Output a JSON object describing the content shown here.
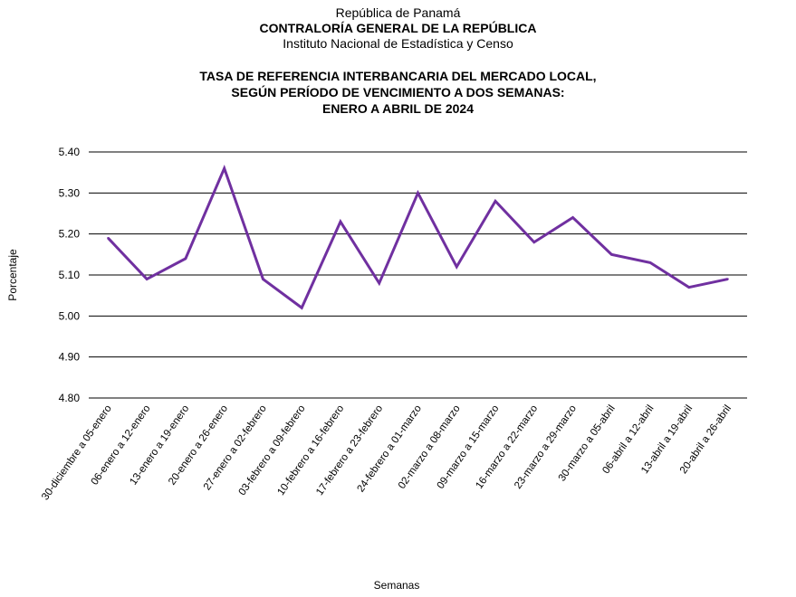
{
  "header": {
    "line1": "República de Panamá",
    "line2": "CONTRALORÍA GENERAL DE LA REPÚBLICA",
    "line3": "Instituto Nacional de Estadística y Censo"
  },
  "chart_data": {
    "type": "line",
    "title": [
      "TASA DE REFERENCIA INTERBANCARIA DEL MERCADO LOCAL,",
      "SEGÚN PERÍODO DE VENCIMIENTO A DOS SEMANAS:",
      "ENERO A ABRIL DE 2024"
    ],
    "xlabel": "Semanas",
    "ylabel": "Porcentaje",
    "ylim": [
      4.8,
      5.4
    ],
    "yticks": [
      "5.40",
      "5.30",
      "5.20",
      "5.10",
      "5.00",
      "4.90",
      "4.80"
    ],
    "grid": "horizontal",
    "line_color": "#7030a0",
    "categories": [
      "30-diciembre a 05-enero",
      "06-enero a 12-enero",
      "13-enero a 19-enero",
      "20-enero a 26-enero",
      "27-enero a 02-febrero",
      "03-febrero a 09-febrero",
      "10-febrero a 16-febrero",
      "17-febrero a 23-febrero",
      "24-febrero a 01-marzo",
      "02-marzo a 08-marzo",
      "09-marzo a 15-marzo",
      "16-marzo a 22-marzo",
      "23-marzo a 29-marzo",
      "30-marzo a 05-abril",
      "06-abril a 12-abril",
      "13-abril a 19-abril",
      "20-abril a 26-abril"
    ],
    "values": [
      5.19,
      5.09,
      5.14,
      5.36,
      5.09,
      5.02,
      5.23,
      5.08,
      5.3,
      5.12,
      5.28,
      5.18,
      5.24,
      5.15,
      5.13,
      5.07,
      5.09
    ]
  }
}
